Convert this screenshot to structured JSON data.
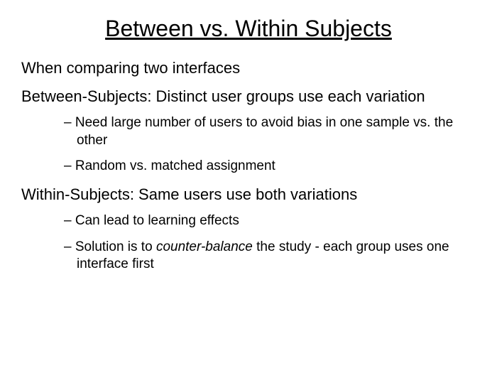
{
  "title": "Between vs. Within Subjects",
  "intro": "When comparing two interfaces",
  "between": {
    "heading": "Between-Subjects: Distinct user groups use each variation",
    "bullets": [
      "Need large number of users to avoid bias in one sample vs. the other",
      "Random vs. matched assignment"
    ]
  },
  "within": {
    "heading": "Within-Subjects: Same users use both variations",
    "bullets": [
      "Can lead to learning effects"
    ],
    "solution_prefix": "Solution is to ",
    "solution_italic": "counter-balance",
    "solution_suffix": " the study - each group uses one interface first"
  }
}
